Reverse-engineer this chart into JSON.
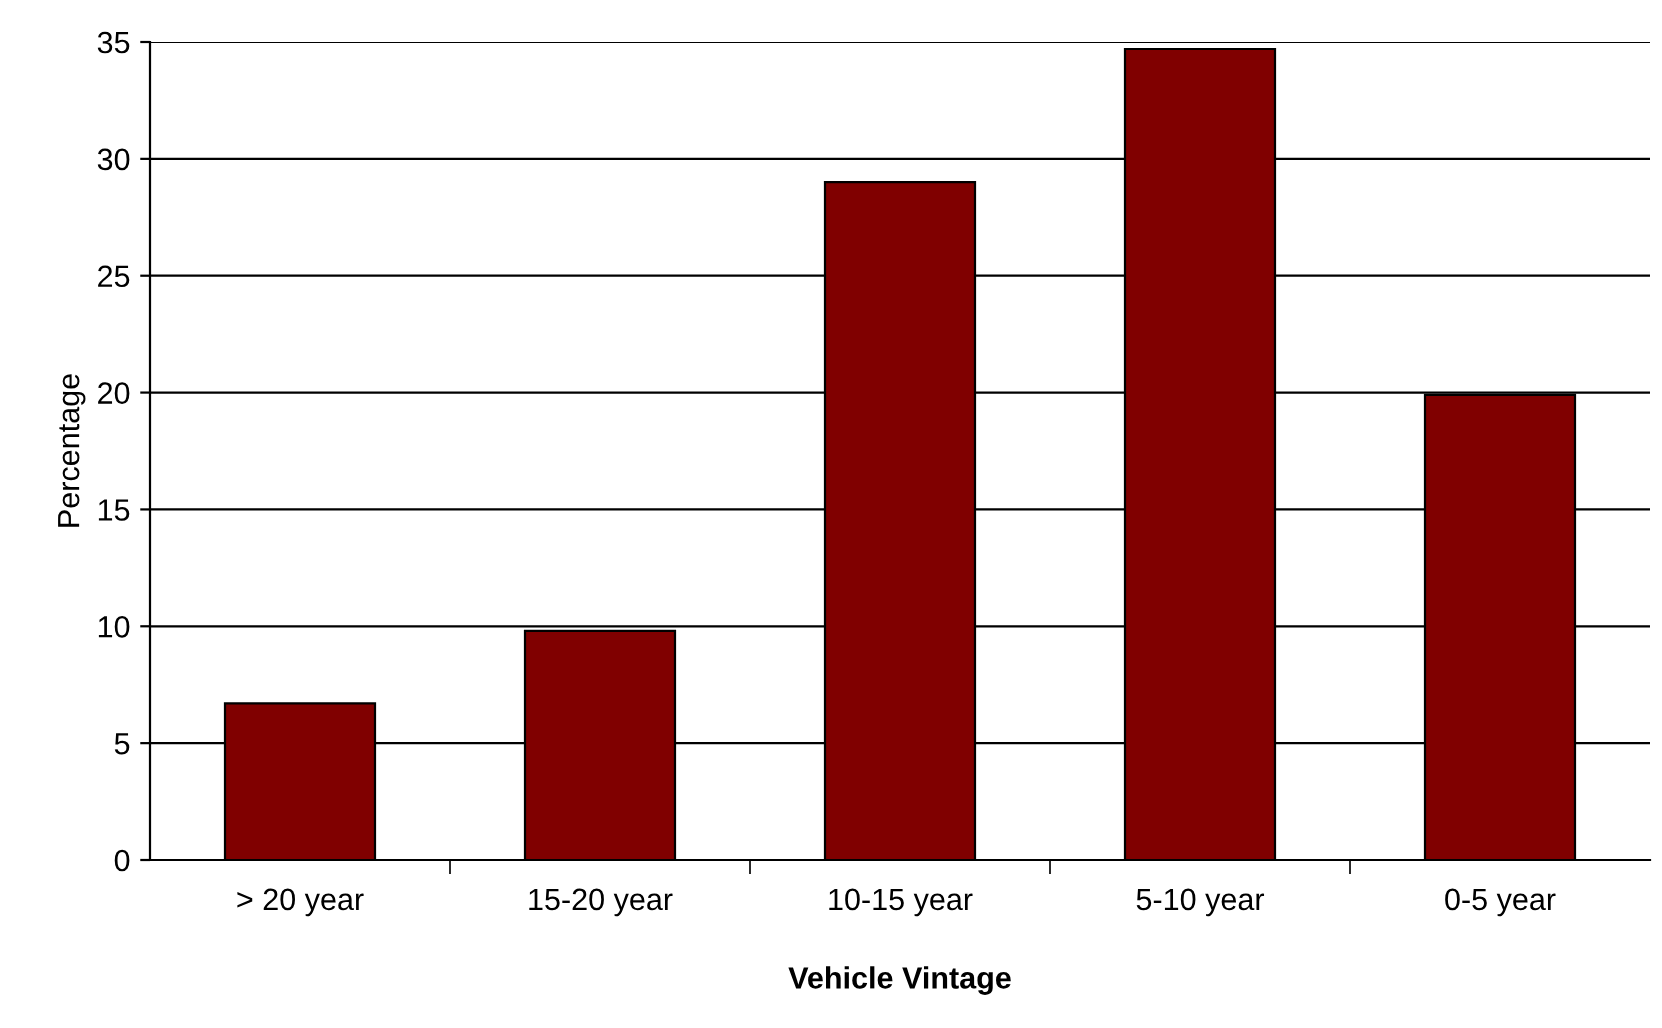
{
  "chart_data": {
    "type": "bar",
    "xlabel": "Vehicle Vintage",
    "ylabel": "Percentage",
    "categories": [
      "> 20 year",
      "15-20 year",
      "10-15 year",
      "5-10 year",
      "0-5 year"
    ],
    "values": [
      6.7,
      9.8,
      29.0,
      34.7,
      19.9
    ],
    "color": "#800000",
    "ylim": [
      0,
      35
    ],
    "yticks": [
      0,
      5,
      10,
      15,
      20,
      25,
      30,
      35
    ],
    "grid": "y",
    "legend": false
  }
}
